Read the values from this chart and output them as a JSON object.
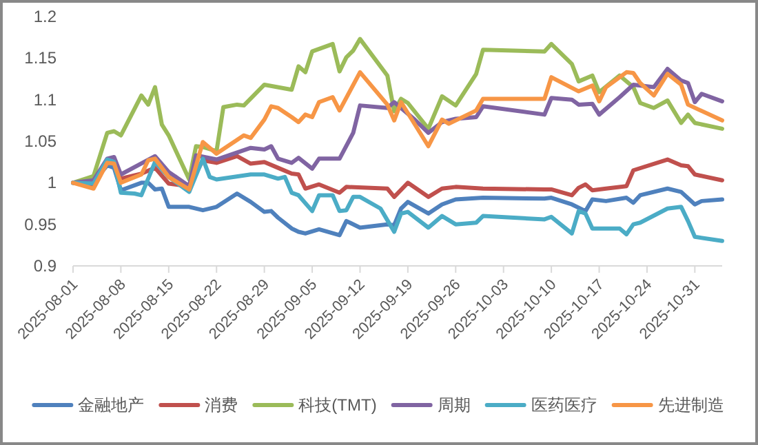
{
  "chart_data": {
    "type": "line",
    "legend": "bottom",
    "xlim": [
      "2025-08-01",
      "2025-11-04"
    ],
    "xticks": [
      "2025-08-01",
      "2025-08-08",
      "2025-08-15",
      "2025-08-22",
      "2025-08-29",
      "2025-09-05",
      "2025-09-12",
      "2025-09-19",
      "2025-09-26",
      "2025-10-03",
      "2025-10-10",
      "2025-10-17",
      "2025-10-24",
      "2025-10-31"
    ],
    "ylim": [
      0.9,
      1.2
    ],
    "yticks": [
      0.9,
      0.95,
      1,
      1.05,
      1.1,
      1.15,
      1.2
    ],
    "series": [
      {
        "name": "金融地产",
        "color": "#4f81bd",
        "x": [
          "2025-08-01",
          "2025-08-04",
          "2025-08-06",
          "2025-08-07",
          "2025-08-08",
          "2025-08-11",
          "2025-08-12",
          "2025-08-13",
          "2025-08-14",
          "2025-08-15",
          "2025-08-18",
          "2025-08-20",
          "2025-08-22",
          "2025-08-25",
          "2025-08-27",
          "2025-08-29",
          "2025-08-30",
          "2025-08-31",
          "2025-09-02",
          "2025-09-03",
          "2025-09-04",
          "2025-09-06",
          "2025-09-09",
          "2025-09-10",
          "2025-09-12",
          "2025-09-16",
          "2025-09-17",
          "2025-09-18",
          "2025-09-19",
          "2025-09-22",
          "2025-09-24",
          "2025-09-26",
          "2025-09-30",
          "2025-10-09",
          "2025-10-10",
          "2025-10-13",
          "2025-10-15",
          "2025-10-16",
          "2025-10-18",
          "2025-10-21",
          "2025-10-22",
          "2025-10-23",
          "2025-10-27",
          "2025-10-29",
          "2025-10-31",
          "2025-11-01",
          "2025-11-04"
        ],
        "values": [
          1.0,
          1.001,
          1.021,
          1.018,
          0.991,
          1.0,
          1.0,
          0.992,
          0.993,
          0.971,
          0.971,
          0.967,
          0.971,
          0.987,
          0.977,
          0.965,
          0.966,
          0.958,
          0.945,
          0.941,
          0.939,
          0.944,
          0.937,
          0.954,
          0.946,
          0.95,
          0.949,
          0.969,
          0.977,
          0.963,
          0.974,
          0.98,
          0.982,
          0.981,
          0.982,
          0.974,
          0.966,
          0.98,
          0.978,
          0.982,
          0.976,
          0.985,
          0.993,
          0.989,
          0.974,
          0.978,
          0.98
        ]
      },
      {
        "name": "消费",
        "color": "#c0504d",
        "x": [
          "2025-08-01",
          "2025-08-04",
          "2025-08-06",
          "2025-08-07",
          "2025-08-08",
          "2025-08-11",
          "2025-08-13",
          "2025-08-15",
          "2025-08-18",
          "2025-08-20",
          "2025-08-22",
          "2025-08-25",
          "2025-08-27",
          "2025-08-29",
          "2025-08-31",
          "2025-09-02",
          "2025-09-03",
          "2025-09-04",
          "2025-09-06",
          "2025-09-09",
          "2025-09-10",
          "2025-09-16",
          "2025-09-17",
          "2025-09-19",
          "2025-09-22",
          "2025-09-24",
          "2025-09-26",
          "2025-09-30",
          "2025-10-09",
          "2025-10-10",
          "2025-10-13",
          "2025-10-14",
          "2025-10-15",
          "2025-10-16",
          "2025-10-18",
          "2025-10-21",
          "2025-10-22",
          "2025-10-27",
          "2025-10-29",
          "2025-10-30",
          "2025-10-31",
          "2025-11-04"
        ],
        "values": [
          1.0,
          0.996,
          1.024,
          1.025,
          1.005,
          1.011,
          1.018,
          0.999,
          0.996,
          1.027,
          1.024,
          1.032,
          1.023,
          1.025,
          1.018,
          1.011,
          1.01,
          0.993,
          0.998,
          0.988,
          0.995,
          0.993,
          0.983,
          1.0,
          0.983,
          0.993,
          0.995,
          0.993,
          0.992,
          0.992,
          0.985,
          0.994,
          0.998,
          0.991,
          0.993,
          0.996,
          1.015,
          1.028,
          1.021,
          1.02,
          1.01,
          1.003
        ]
      },
      {
        "name": "科技(TMT)",
        "color": "#9bbb59",
        "x": [
          "2025-08-01",
          "2025-08-04",
          "2025-08-06",
          "2025-08-07",
          "2025-08-08",
          "2025-08-11",
          "2025-08-12",
          "2025-08-13",
          "2025-08-14",
          "2025-08-15",
          "2025-08-18",
          "2025-08-19",
          "2025-08-20",
          "2025-08-22",
          "2025-08-23",
          "2025-08-25",
          "2025-08-26",
          "2025-08-29",
          "2025-09-02",
          "2025-09-03",
          "2025-09-04",
          "2025-09-05",
          "2025-09-08",
          "2025-09-09",
          "2025-09-10",
          "2025-09-11",
          "2025-09-12",
          "2025-09-16",
          "2025-09-17",
          "2025-09-18",
          "2025-09-19",
          "2025-09-22",
          "2025-09-24",
          "2025-09-26",
          "2025-09-29",
          "2025-09-30",
          "2025-10-09",
          "2025-10-10",
          "2025-10-13",
          "2025-10-14",
          "2025-10-16",
          "2025-10-17",
          "2025-10-20",
          "2025-10-22",
          "2025-10-23",
          "2025-10-25",
          "2025-10-27",
          "2025-10-29",
          "2025-10-30",
          "2025-10-31",
          "2025-11-04"
        ],
        "values": [
          1.0,
          1.008,
          1.06,
          1.062,
          1.057,
          1.105,
          1.094,
          1.115,
          1.07,
          1.057,
          1.004,
          1.044,
          1.043,
          1.038,
          1.091,
          1.094,
          1.093,
          1.118,
          1.112,
          1.14,
          1.133,
          1.158,
          1.167,
          1.134,
          1.151,
          1.159,
          1.173,
          1.129,
          1.086,
          1.101,
          1.096,
          1.065,
          1.104,
          1.093,
          1.131,
          1.16,
          1.158,
          1.167,
          1.143,
          1.122,
          1.129,
          1.109,
          1.129,
          1.115,
          1.096,
          1.09,
          1.099,
          1.072,
          1.082,
          1.072,
          1.065
        ]
      },
      {
        "name": "周期",
        "color": "#8064a2",
        "x": [
          "2025-08-01",
          "2025-08-04",
          "2025-08-06",
          "2025-08-07",
          "2025-08-08",
          "2025-08-13",
          "2025-08-15",
          "2025-08-18",
          "2025-08-19",
          "2025-08-22",
          "2025-08-27",
          "2025-08-29",
          "2025-08-30",
          "2025-08-31",
          "2025-09-02",
          "2025-09-03",
          "2025-09-05",
          "2025-09-06",
          "2025-09-09",
          "2025-09-11",
          "2025-09-12",
          "2025-09-16",
          "2025-09-17",
          "2025-09-20",
          "2025-09-22",
          "2025-09-24",
          "2025-09-26",
          "2025-09-29",
          "2025-09-30",
          "2025-10-09",
          "2025-10-10",
          "2025-10-13",
          "2025-10-14",
          "2025-10-16",
          "2025-10-17",
          "2025-10-20",
          "2025-10-22",
          "2025-10-25",
          "2025-10-27",
          "2025-10-29",
          "2025-10-30",
          "2025-10-31",
          "2025-11-01",
          "2025-11-04"
        ],
        "values": [
          1.0,
          1.003,
          1.029,
          1.031,
          1.01,
          1.032,
          1.013,
          0.996,
          1.033,
          1.028,
          1.042,
          1.04,
          1.044,
          1.029,
          1.024,
          1.03,
          1.017,
          1.029,
          1.029,
          1.06,
          1.093,
          1.09,
          1.097,
          1.076,
          1.06,
          1.073,
          1.077,
          1.079,
          1.092,
          1.082,
          1.102,
          1.1,
          1.094,
          1.095,
          1.082,
          1.103,
          1.118,
          1.115,
          1.137,
          1.123,
          1.12,
          1.097,
          1.107,
          1.098
        ]
      },
      {
        "name": "医药医疗",
        "color": "#4bacc6",
        "x": [
          "2025-08-01",
          "2025-08-04",
          "2025-08-06",
          "2025-08-07",
          "2025-08-08",
          "2025-08-10",
          "2025-08-11",
          "2025-08-13",
          "2025-08-15",
          "2025-08-18",
          "2025-08-20",
          "2025-08-21",
          "2025-08-22",
          "2025-08-27",
          "2025-08-29",
          "2025-08-31",
          "2025-09-01",
          "2025-09-02",
          "2025-09-03",
          "2025-09-05",
          "2025-09-06",
          "2025-09-08",
          "2025-09-09",
          "2025-09-10",
          "2025-09-11",
          "2025-09-12",
          "2025-09-15",
          "2025-09-16",
          "2025-09-17",
          "2025-09-18",
          "2025-09-19",
          "2025-09-22",
          "2025-09-24",
          "2025-09-26",
          "2025-09-29",
          "2025-09-30",
          "2025-10-09",
          "2025-10-10",
          "2025-10-13",
          "2025-10-14",
          "2025-10-15",
          "2025-10-16",
          "2025-10-20",
          "2025-10-21",
          "2025-10-22",
          "2025-10-23",
          "2025-10-27",
          "2025-10-29",
          "2025-10-30",
          "2025-10-31",
          "2025-11-04"
        ],
        "values": [
          1.0,
          0.999,
          1.028,
          1.025,
          0.988,
          0.987,
          0.985,
          1.025,
          1.007,
          0.989,
          1.029,
          1.007,
          1.004,
          1.01,
          1.01,
          1.005,
          1.007,
          0.988,
          0.985,
          0.966,
          0.985,
          0.985,
          0.966,
          0.967,
          0.983,
          0.983,
          0.969,
          0.955,
          0.941,
          0.963,
          0.965,
          0.946,
          0.96,
          0.95,
          0.952,
          0.96,
          0.956,
          0.959,
          0.939,
          0.966,
          0.963,
          0.945,
          0.945,
          0.938,
          0.95,
          0.952,
          0.969,
          0.971,
          0.954,
          0.935,
          0.93
        ]
      },
      {
        "name": "先进制造",
        "color": "#f79646",
        "x": [
          "2025-08-01",
          "2025-08-04",
          "2025-08-06",
          "2025-08-07",
          "2025-08-08",
          "2025-08-11",
          "2025-08-12",
          "2025-08-13",
          "2025-08-15",
          "2025-08-18",
          "2025-08-20",
          "2025-08-22",
          "2025-08-26",
          "2025-08-27",
          "2025-08-29",
          "2025-08-30",
          "2025-08-31",
          "2025-09-02",
          "2025-09-03",
          "2025-09-04",
          "2025-09-05",
          "2025-09-06",
          "2025-09-08",
          "2025-09-09",
          "2025-09-12",
          "2025-09-16",
          "2025-09-17",
          "2025-09-18",
          "2025-09-22",
          "2025-09-24",
          "2025-09-25",
          "2025-09-29",
          "2025-09-30",
          "2025-10-09",
          "2025-10-10",
          "2025-10-14",
          "2025-10-16",
          "2025-10-17",
          "2025-10-18",
          "2025-10-21",
          "2025-10-22",
          "2025-10-23",
          "2025-10-25",
          "2025-10-27",
          "2025-10-29",
          "2025-10-30",
          "2025-11-04"
        ],
        "values": [
          1.0,
          0.993,
          1.024,
          1.023,
          1.0,
          1.01,
          1.027,
          1.029,
          1.007,
          0.992,
          1.049,
          1.035,
          1.057,
          1.054,
          1.076,
          1.092,
          1.09,
          1.079,
          1.073,
          1.082,
          1.079,
          1.097,
          1.103,
          1.087,
          1.133,
          1.094,
          1.075,
          1.097,
          1.044,
          1.076,
          1.071,
          1.087,
          1.101,
          1.101,
          1.127,
          1.11,
          1.117,
          1.098,
          1.115,
          1.133,
          1.132,
          1.12,
          1.105,
          1.131,
          1.118,
          1.094,
          1.075
        ]
      }
    ]
  }
}
